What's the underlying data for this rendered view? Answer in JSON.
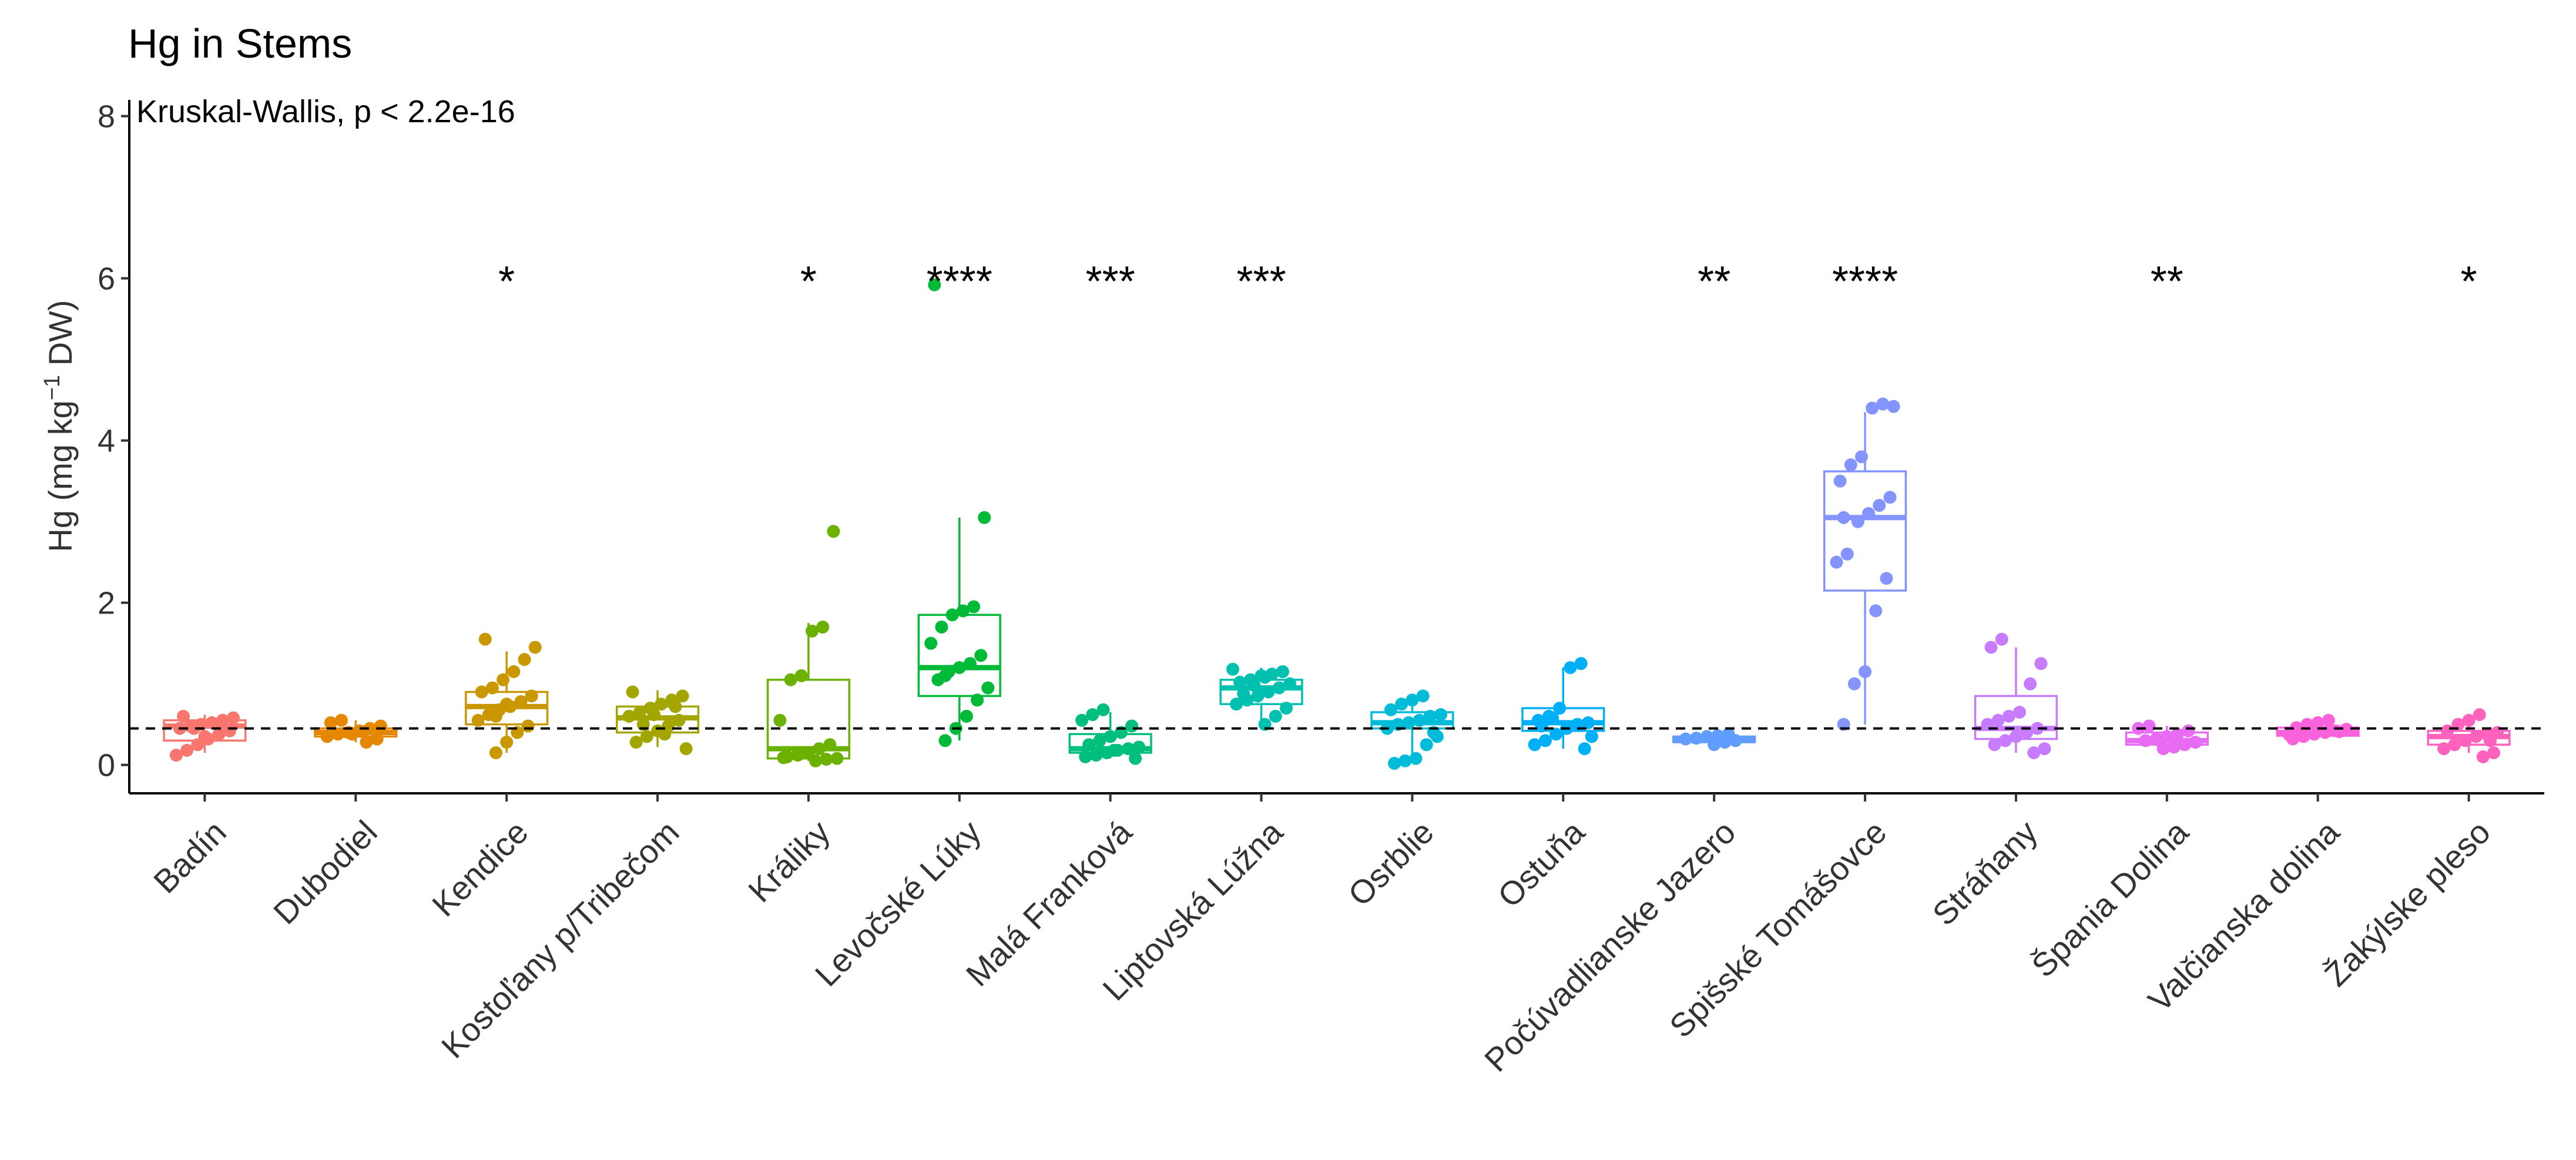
{
  "chart_data": {
    "type": "boxplot",
    "title": "Hg in Stems",
    "annotation": "Kruskal-Wallis, p < 2.2e-16",
    "ylabel": {
      "main": "Hg (mg kg",
      "sup": "−1",
      "tail": " DW)"
    },
    "xlabel": "",
    "ylim": [
      -0.35,
      8.2
    ],
    "yticks": [
      "0",
      "2",
      "4",
      "6",
      "8"
    ],
    "reference_line": 0.45,
    "legend": "none",
    "grid": false,
    "groups": [
      {
        "name": "Badín",
        "color": "#F8766D",
        "signif": "",
        "box": {
          "min": 0.15,
          "q1": 0.3,
          "median": 0.48,
          "q3": 0.55,
          "max": 0.62
        },
        "points": [
          0.12,
          0.18,
          0.25,
          0.32,
          0.38,
          0.42,
          0.45,
          0.48,
          0.5,
          0.52,
          0.55,
          0.58,
          0.6,
          0.45,
          0.35
        ]
      },
      {
        "name": "Dubodiel",
        "color": "#E58700",
        "signif": "",
        "box": {
          "min": 0.28,
          "q1": 0.35,
          "median": 0.4,
          "q3": 0.45,
          "max": 0.55
        },
        "points": [
          0.28,
          0.32,
          0.35,
          0.38,
          0.4,
          0.42,
          0.45,
          0.48,
          0.52,
          0.55,
          0.38,
          0.41
        ]
      },
      {
        "name": "Kendice",
        "color": "#C99800",
        "signif": "*",
        "box": {
          "min": 0.15,
          "q1": 0.5,
          "median": 0.72,
          "q3": 0.9,
          "max": 1.4
        },
        "points": [
          0.15,
          0.28,
          0.4,
          0.48,
          0.55,
          0.62,
          0.68,
          0.72,
          0.78,
          0.85,
          0.9,
          0.95,
          1.05,
          1.15,
          1.3,
          1.45,
          1.55,
          0.6,
          0.75
        ]
      },
      {
        "name": "Kostoľany p/Tribečom",
        "color": "#A3A500",
        "signif": "",
        "box": {
          "min": 0.22,
          "q1": 0.4,
          "median": 0.58,
          "q3": 0.72,
          "max": 0.92
        },
        "points": [
          0.2,
          0.28,
          0.35,
          0.42,
          0.48,
          0.55,
          0.6,
          0.65,
          0.7,
          0.75,
          0.8,
          0.85,
          0.9,
          0.5,
          0.62,
          0.38,
          0.72
        ]
      },
      {
        "name": "Králiky",
        "color": "#6BB100",
        "signif": "*",
        "box": {
          "min": 0.05,
          "q1": 0.08,
          "median": 0.2,
          "q3": 1.05,
          "max": 1.75
        },
        "points": [
          0.05,
          0.07,
          0.08,
          0.1,
          0.12,
          0.15,
          0.2,
          0.25,
          0.55,
          1.05,
          1.1,
          1.65,
          1.7,
          2.88,
          0.09
        ]
      },
      {
        "name": "Levočské Lúky",
        "color": "#00BA38",
        "signif": "****",
        "box": {
          "min": 0.3,
          "q1": 0.85,
          "median": 1.2,
          "q3": 1.85,
          "max": 3.05
        },
        "points": [
          0.3,
          0.45,
          0.6,
          0.8,
          0.95,
          1.05,
          1.15,
          1.2,
          1.25,
          1.35,
          1.5,
          1.7,
          1.85,
          1.9,
          1.95,
          3.05,
          5.92,
          1.1
        ]
      },
      {
        "name": "Malá Franková",
        "color": "#00BF7D",
        "signif": "***",
        "box": {
          "min": 0.08,
          "q1": 0.15,
          "median": 0.2,
          "q3": 0.38,
          "max": 0.65
        },
        "points": [
          0.08,
          0.1,
          0.12,
          0.15,
          0.18,
          0.2,
          0.22,
          0.25,
          0.3,
          0.35,
          0.4,
          0.48,
          0.55,
          0.62,
          0.68,
          0.18
        ]
      },
      {
        "name": "Liptovská Lúžna",
        "color": "#00C0AF",
        "signif": "***",
        "box": {
          "min": 0.5,
          "q1": 0.75,
          "median": 0.95,
          "q3": 1.05,
          "max": 1.2
        },
        "points": [
          0.5,
          0.6,
          0.7,
          0.75,
          0.8,
          0.85,
          0.9,
          0.95,
          1.0,
          1.02,
          1.05,
          1.1,
          1.12,
          1.15,
          1.18,
          0.88,
          0.98,
          1.08
        ]
      },
      {
        "name": "Osrblie",
        "color": "#00BCD8",
        "signif": "",
        "box": {
          "min": 0.05,
          "q1": 0.45,
          "median": 0.52,
          "q3": 0.65,
          "max": 0.85
        },
        "points": [
          0.02,
          0.05,
          0.08,
          0.25,
          0.35,
          0.45,
          0.5,
          0.52,
          0.55,
          0.6,
          0.62,
          0.68,
          0.75,
          0.8,
          0.85,
          0.4
        ]
      },
      {
        "name": "Ostuňa",
        "color": "#00B0F6",
        "signif": "",
        "box": {
          "min": 0.2,
          "q1": 0.42,
          "median": 0.52,
          "q3": 0.7,
          "max": 1.2
        },
        "points": [
          0.2,
          0.25,
          0.3,
          0.38,
          0.45,
          0.5,
          0.52,
          0.55,
          0.6,
          0.7,
          1.2,
          1.25,
          0.35,
          0.48,
          0.58
        ]
      },
      {
        "name": "Počúvadlianske Jazero",
        "color": "#619CFF",
        "signif": "**",
        "box": {
          "min": 0.25,
          "q1": 0.28,
          "median": 0.32,
          "q3": 0.35,
          "max": 0.38
        },
        "points": [
          0.25,
          0.28,
          0.3,
          0.32,
          0.33,
          0.35,
          0.36,
          0.38
        ]
      },
      {
        "name": "Spišské Tomášovce",
        "color": "#8494FF",
        "signif": "****",
        "box": {
          "min": 0.5,
          "q1": 2.15,
          "median": 3.05,
          "q3": 3.62,
          "max": 4.35
        },
        "points": [
          0.5,
          1.0,
          1.15,
          1.9,
          2.3,
          2.5,
          2.6,
          3.0,
          3.1,
          3.2,
          3.3,
          3.5,
          3.7,
          3.8,
          4.4,
          4.45,
          4.42,
          3.05
        ]
      },
      {
        "name": "Stráňany",
        "color": "#C77CFF",
        "signif": "",
        "box": {
          "min": 0.15,
          "q1": 0.32,
          "median": 0.45,
          "q3": 0.85,
          "max": 1.45
        },
        "points": [
          0.15,
          0.2,
          0.25,
          0.3,
          0.35,
          0.4,
          0.45,
          0.5,
          0.55,
          0.6,
          0.65,
          1.0,
          1.25,
          1.45,
          1.55
        ]
      },
      {
        "name": "Špania Dolina",
        "color": "#E76BF3",
        "signif": "**",
        "box": {
          "min": 0.2,
          "q1": 0.25,
          "median": 0.3,
          "q3": 0.4,
          "max": 0.48
        },
        "points": [
          0.2,
          0.22,
          0.25,
          0.28,
          0.3,
          0.32,
          0.35,
          0.38,
          0.42,
          0.45,
          0.48,
          0.3
        ]
      },
      {
        "name": "Valčianska dolina",
        "color": "#FA62DB",
        "signif": "",
        "box": {
          "min": 0.32,
          "q1": 0.36,
          "median": 0.4,
          "q3": 0.46,
          "max": 0.55
        },
        "points": [
          0.32,
          0.35,
          0.38,
          0.4,
          0.42,
          0.44,
          0.46,
          0.5,
          0.52,
          0.55,
          0.41,
          0.37
        ]
      },
      {
        "name": "Žakýlske pleso",
        "color": "#FF62BC",
        "signif": "*",
        "box": {
          "min": 0.15,
          "q1": 0.25,
          "median": 0.35,
          "q3": 0.42,
          "max": 0.6
        },
        "points": [
          0.1,
          0.15,
          0.2,
          0.25,
          0.3,
          0.35,
          0.38,
          0.4,
          0.42,
          0.5,
          0.55,
          0.62,
          0.3
        ]
      }
    ]
  }
}
